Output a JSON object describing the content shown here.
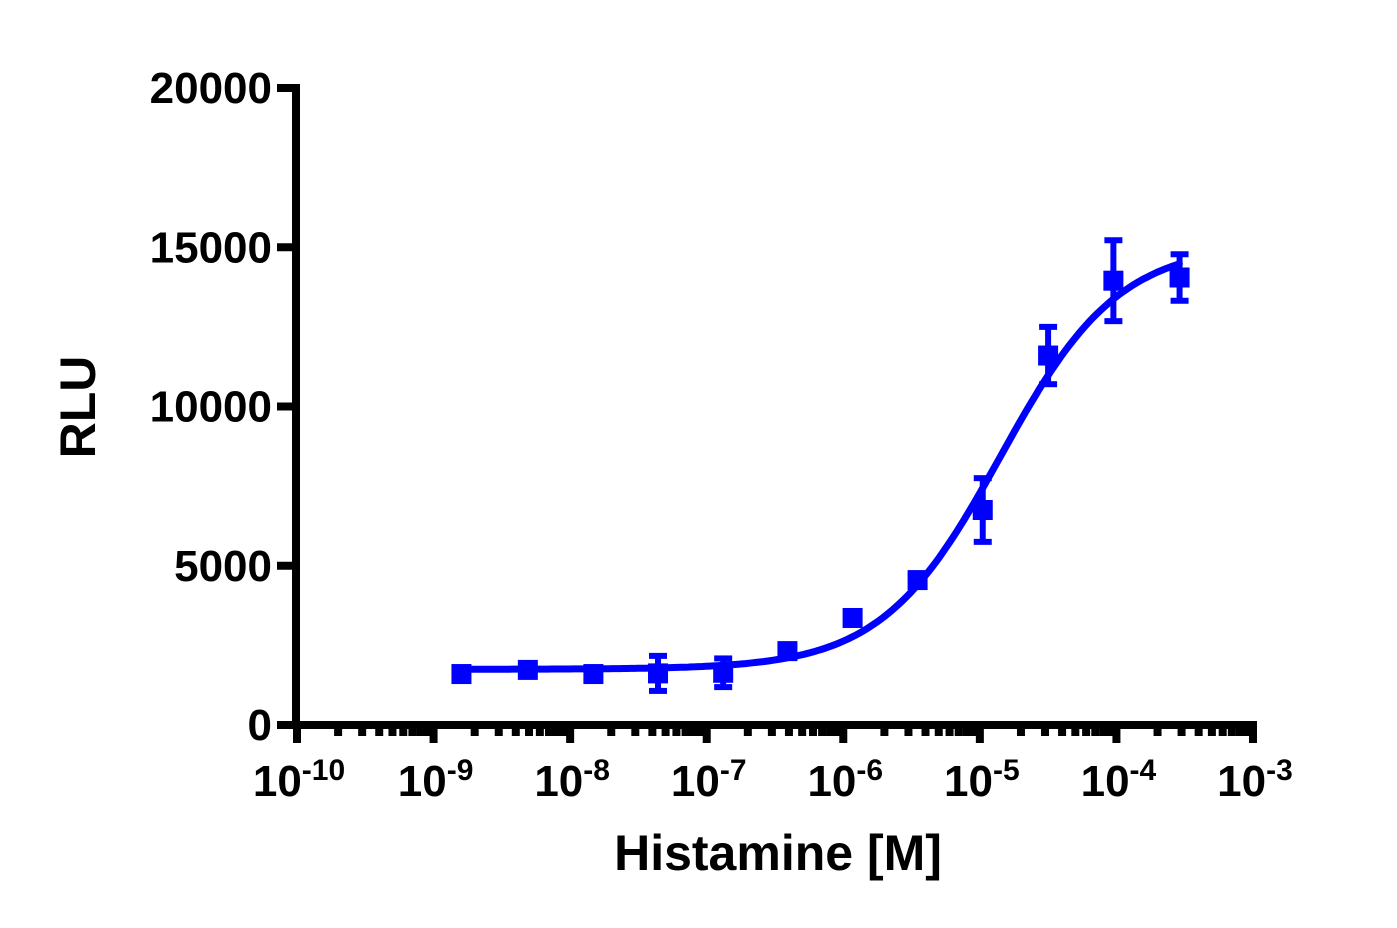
{
  "chart_data": {
    "type": "scatter",
    "title": "",
    "xlabel": "Histamine [M]",
    "ylabel": "RLU",
    "x_scale": "log10",
    "xlim": [
      1e-10,
      0.001
    ],
    "ylim": [
      0,
      20000
    ],
    "grid": false,
    "legend": null,
    "x_tick_labels": [
      {
        "base": "10",
        "exp": "-10",
        "log": -10
      },
      {
        "base": "10",
        "exp": "-9",
        "log": -9
      },
      {
        "base": "10",
        "exp": "-8",
        "log": -8
      },
      {
        "base": "10",
        "exp": "-7",
        "log": -7
      },
      {
        "base": "10",
        "exp": "-6",
        "log": -6
      },
      {
        "base": "10",
        "exp": "-5",
        "log": -5
      },
      {
        "base": "10",
        "exp": "-4",
        "log": -4
      },
      {
        "base": "10",
        "exp": "-3",
        "log": -3
      }
    ],
    "y_tick_labels": [
      "0",
      "5000",
      "10000",
      "15000",
      "20000"
    ],
    "y_ticks": [
      0,
      5000,
      10000,
      15000,
      20000
    ],
    "series": [
      {
        "name": "Histamine",
        "color": "#0000ff",
        "marker": "square",
        "points": [
          {
            "x": 1.6e-09,
            "y": 1600,
            "err": 0
          },
          {
            "x": 4.9e-09,
            "y": 1730,
            "err": 0
          },
          {
            "x": 1.48e-08,
            "y": 1600,
            "err": 0
          },
          {
            "x": 4.4e-08,
            "y": 1620,
            "err": 550
          },
          {
            "x": 1.32e-07,
            "y": 1640,
            "err": 450
          },
          {
            "x": 3.9e-07,
            "y": 2320,
            "err": 0
          },
          {
            "x": 1.17e-06,
            "y": 3360,
            "err": 0
          },
          {
            "x": 3.5e-06,
            "y": 4550,
            "err": 150
          },
          {
            "x": 1.05e-05,
            "y": 6750,
            "err": 1000
          },
          {
            "x": 3.16e-05,
            "y": 11600,
            "err": 900
          },
          {
            "x": 9.5e-05,
            "y": 13950,
            "err": 1270
          },
          {
            "x": 0.00029,
            "y": 14050,
            "err": 730
          }
        ],
        "fit": {
          "model": "sigmoidal dose-response",
          "bottom": 1750,
          "top": 15100,
          "logEC50": -4.85,
          "hill": 1.0,
          "x_range_log": [
            -8.79,
            -3.54
          ]
        }
      }
    ]
  }
}
